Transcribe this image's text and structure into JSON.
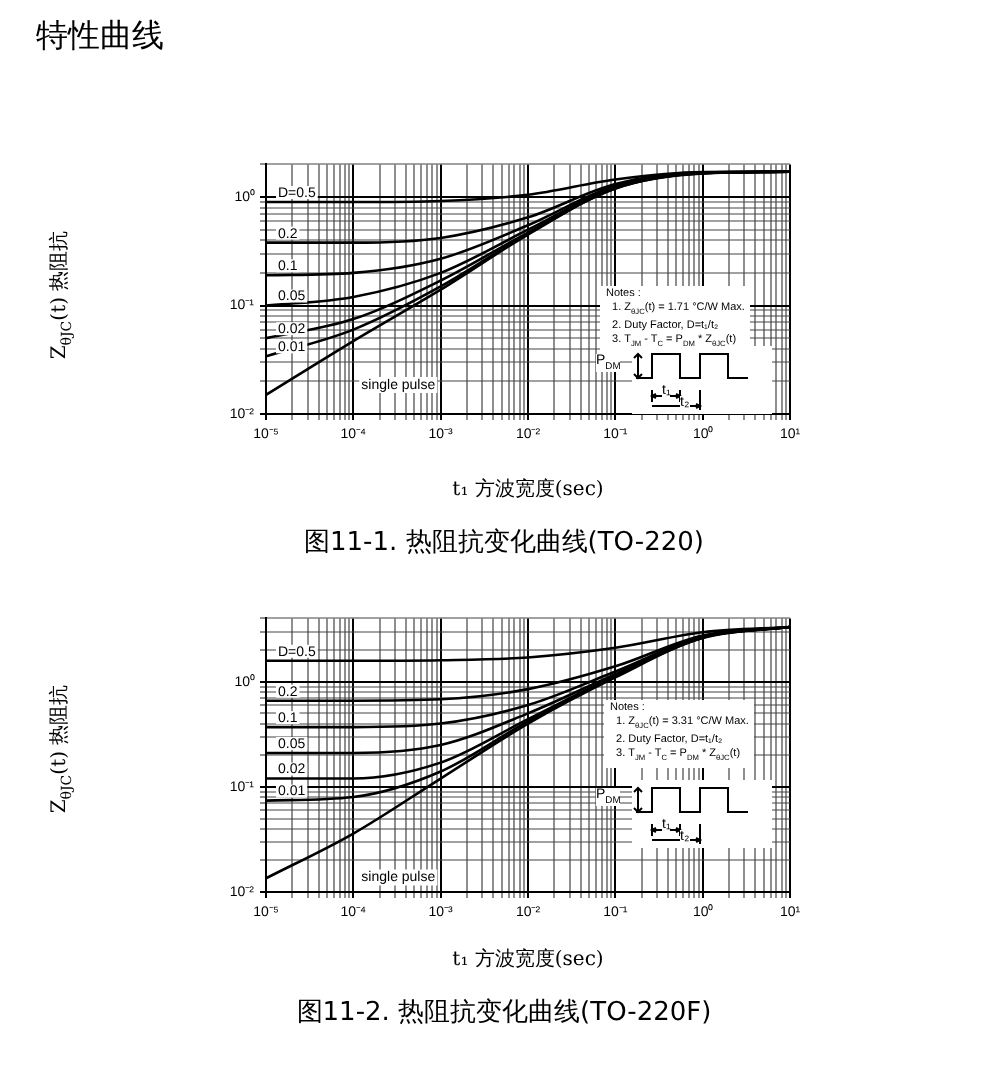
{
  "chart_data": [
    {
      "type": "other",
      "title": "特性曲线"
    },
    {
      "type": "line",
      "title": "图11-1. 热阻抗变化曲线(TO-220)",
      "xlabel": "t₁ 方波宽度(sec)",
      "ylabel": "Z$_{θJC}$(t) 热阻抗",
      "log": "xy",
      "grid": true,
      "legend": false,
      "marker": "none",
      "line_style": "solid",
      "annotations": [
        "Notes :",
        "1. Z$_{θJC}$(t) = 1.71 °C/W Max.",
        "2. Duty Factor, D=t₁/t₂",
        "3. T$_{JM}$ - T$_{C}$ = P$_{DM}$ * Z$_{θJC}$(t)",
        "P$_{DM}$",
        "t₁",
        "t₂"
      ],
      "xlim": [
        1e-05,
        10
      ],
      "ylim": [
        0.01,
        2
      ],
      "xticks": [
        {
          "value": 1e-05,
          "label": "10⁻⁵"
        },
        {
          "value": 2e-05,
          "label": null
        },
        {
          "value": 3e-05,
          "label": null
        },
        {
          "value": 4e-05,
          "label": null
        },
        {
          "value": 5e-05,
          "label": null
        },
        {
          "value": 6e-05,
          "label": null
        },
        {
          "value": 7e-05,
          "label": null
        },
        {
          "value": 8e-05,
          "label": null
        },
        {
          "value": 9e-05,
          "label": null
        },
        {
          "value": 0.0001,
          "label": "10⁻⁴"
        },
        {
          "value": 0.0002,
          "label": null
        },
        {
          "value": 0.0003,
          "label": null
        },
        {
          "value": 0.0004,
          "label": null
        },
        {
          "value": 0.0005,
          "label": null
        },
        {
          "value": 0.0006,
          "label": null
        },
        {
          "value": 0.0007,
          "label": null
        },
        {
          "value": 0.0008,
          "label": null
        },
        {
          "value": 0.0009,
          "label": null
        },
        {
          "value": 0.001,
          "label": "10⁻³"
        },
        {
          "value": 0.002,
          "label": null
        },
        {
          "value": 0.003,
          "label": null
        },
        {
          "value": 0.004,
          "label": null
        },
        {
          "value": 0.005,
          "label": null
        },
        {
          "value": 0.006,
          "label": null
        },
        {
          "value": 0.007,
          "label": null
        },
        {
          "value": 0.008,
          "label": null
        },
        {
          "value": 0.009,
          "label": null
        },
        {
          "value": 0.01,
          "label": "10⁻²"
        },
        {
          "value": 0.02,
          "label": null
        },
        {
          "value": 0.03,
          "label": null
        },
        {
          "value": 0.04,
          "label": null
        },
        {
          "value": 0.05,
          "label": null
        },
        {
          "value": 0.06,
          "label": null
        },
        {
          "value": 0.07,
          "label": null
        },
        {
          "value": 0.08,
          "label": null
        },
        {
          "value": 0.09,
          "label": null
        },
        {
          "value": 0.1,
          "label": "10⁻¹"
        },
        {
          "value": 0.2,
          "label": null
        },
        {
          "value": 0.3,
          "label": null
        },
        {
          "value": 0.4,
          "label": null
        },
        {
          "value": 0.5,
          "label": null
        },
        {
          "value": 0.6,
          "label": null
        },
        {
          "value": 0.7,
          "label": null
        },
        {
          "value": 0.8,
          "label": null
        },
        {
          "value": 0.9,
          "label": null
        },
        {
          "value": 1,
          "label": "10⁰"
        },
        {
          "value": 2,
          "label": null
        },
        {
          "value": 3,
          "label": null
        },
        {
          "value": 4,
          "label": null
        },
        {
          "value": 5,
          "label": null
        },
        {
          "value": 6,
          "label": null
        },
        {
          "value": 7,
          "label": null
        },
        {
          "value": 8,
          "label": null
        },
        {
          "value": 9,
          "label": null
        },
        {
          "value": 10,
          "label": "10¹"
        }
      ],
      "yticks": [
        {
          "value": 0.01,
          "label": "10⁻²"
        },
        {
          "value": 0.02,
          "label": null
        },
        {
          "value": 0.03,
          "label": null
        },
        {
          "value": 0.04,
          "label": null
        },
        {
          "value": 0.05,
          "label": null
        },
        {
          "value": 0.06,
          "label": null
        },
        {
          "value": 0.07,
          "label": null
        },
        {
          "value": 0.08,
          "label": null
        },
        {
          "value": 0.09,
          "label": null
        },
        {
          "value": 0.1,
          "label": "10⁻¹"
        },
        {
          "value": 0.2,
          "label": null
        },
        {
          "value": 0.3,
          "label": null
        },
        {
          "value": 0.4,
          "label": null
        },
        {
          "value": 0.5,
          "label": null
        },
        {
          "value": 0.6,
          "label": null
        },
        {
          "value": 0.7,
          "label": null
        },
        {
          "value": 0.8,
          "label": null
        },
        {
          "value": 0.9,
          "label": null
        },
        {
          "value": 1,
          "label": "10⁰"
        },
        {
          "value": 2,
          "label": null
        }
      ],
      "x": [
        1e-05,
        0.0001,
        0.001,
        0.01,
        0.1,
        1,
        10
      ],
      "series": [
        {
          "name": "D=0.5",
          "color": "#000000",
          "values": [
            0.9,
            0.9,
            0.92,
            1.05,
            1.45,
            1.7,
            1.71
          ]
        },
        {
          "name": "0.2",
          "color": "#000000",
          "values": [
            0.38,
            0.38,
            0.42,
            0.65,
            1.32,
            1.69,
            1.71
          ]
        },
        {
          "name": "0.1",
          "color": "#000000",
          "values": [
            0.19,
            0.2,
            0.27,
            0.55,
            1.27,
            1.68,
            1.71
          ]
        },
        {
          "name": "0.05",
          "color": "#000000",
          "values": [
            0.1,
            0.12,
            0.2,
            0.5,
            1.24,
            1.67,
            1.71
          ]
        },
        {
          "name": "0.02",
          "color": "#000000",
          "values": [
            0.05,
            0.075,
            0.17,
            0.47,
            1.22,
            1.66,
            1.71
          ]
        },
        {
          "name": "0.01",
          "color": "#000000",
          "values": [
            0.034,
            0.06,
            0.15,
            0.46,
            1.2,
            1.66,
            1.71
          ]
        },
        {
          "name": "single pulse",
          "color": "#000000",
          "values": [
            0.015,
            0.047,
            0.14,
            0.45,
            1.2,
            1.65,
            1.71
          ]
        }
      ]
    },
    {
      "type": "line",
      "title": "图11-2. 热阻抗变化曲线(TO-220F)",
      "xlabel": "t₁ 方波宽度(sec)",
      "ylabel": "Z$_{θJC}$(t) 热阻抗",
      "log": "xy",
      "grid": true,
      "legend": false,
      "marker": "none",
      "line_style": "solid",
      "annotations": [
        "Notes :",
        "1. Z$_{θJC}$(t) = 3.31 °C/W Max.",
        "2. Duty Factor, D=t₁/t₂",
        "3. T$_{JM}$ - T$_{C}$ = P$_{DM}$ * Z$_{θJC}$(t)",
        "P$_{DM}$",
        "t₁",
        "t₂"
      ],
      "xlim": [
        1e-05,
        10
      ],
      "ylim": [
        0.01,
        4
      ],
      "xticks": [
        {
          "value": 1e-05,
          "label": "10⁻⁵"
        },
        {
          "value": 2e-05,
          "label": null
        },
        {
          "value": 3e-05,
          "label": null
        },
        {
          "value": 4e-05,
          "label": null
        },
        {
          "value": 5e-05,
          "label": null
        },
        {
          "value": 6e-05,
          "label": null
        },
        {
          "value": 7e-05,
          "label": null
        },
        {
          "value": 8e-05,
          "label": null
        },
        {
          "value": 9e-05,
          "label": null
        },
        {
          "value": 0.0001,
          "label": "10⁻⁴"
        },
        {
          "value": 0.0002,
          "label": null
        },
        {
          "value": 0.0003,
          "label": null
        },
        {
          "value": 0.0004,
          "label": null
        },
        {
          "value": 0.0005,
          "label": null
        },
        {
          "value": 0.0006,
          "label": null
        },
        {
          "value": 0.0007,
          "label": null
        },
        {
          "value": 0.0008,
          "label": null
        },
        {
          "value": 0.0009,
          "label": null
        },
        {
          "value": 0.001,
          "label": "10⁻³"
        },
        {
          "value": 0.002,
          "label": null
        },
        {
          "value": 0.003,
          "label": null
        },
        {
          "value": 0.004,
          "label": null
        },
        {
          "value": 0.005,
          "label": null
        },
        {
          "value": 0.006,
          "label": null
        },
        {
          "value": 0.007,
          "label": null
        },
        {
          "value": 0.008,
          "label": null
        },
        {
          "value": 0.009,
          "label": null
        },
        {
          "value": 0.01,
          "label": "10⁻²"
        },
        {
          "value": 0.02,
          "label": null
        },
        {
          "value": 0.03,
          "label": null
        },
        {
          "value": 0.04,
          "label": null
        },
        {
          "value": 0.05,
          "label": null
        },
        {
          "value": 0.06,
          "label": null
        },
        {
          "value": 0.07,
          "label": null
        },
        {
          "value": 0.08,
          "label": null
        },
        {
          "value": 0.09,
          "label": null
        },
        {
          "value": 0.1,
          "label": "10⁻¹"
        },
        {
          "value": 0.2,
          "label": null
        },
        {
          "value": 0.3,
          "label": null
        },
        {
          "value": 0.4,
          "label": null
        },
        {
          "value": 0.5,
          "label": null
        },
        {
          "value": 0.6,
          "label": null
        },
        {
          "value": 0.7,
          "label": null
        },
        {
          "value": 0.8,
          "label": null
        },
        {
          "value": 0.9,
          "label": null
        },
        {
          "value": 1,
          "label": "10⁰"
        },
        {
          "value": 2,
          "label": null
        },
        {
          "value": 3,
          "label": null
        },
        {
          "value": 4,
          "label": null
        },
        {
          "value": 5,
          "label": null
        },
        {
          "value": 6,
          "label": null
        },
        {
          "value": 7,
          "label": null
        },
        {
          "value": 8,
          "label": null
        },
        {
          "value": 9,
          "label": null
        },
        {
          "value": 10,
          "label": "10¹"
        }
      ],
      "yticks": [
        {
          "value": 0.01,
          "label": "10⁻²"
        },
        {
          "value": 0.02,
          "label": null
        },
        {
          "value": 0.03,
          "label": null
        },
        {
          "value": 0.04,
          "label": null
        },
        {
          "value": 0.05,
          "label": null
        },
        {
          "value": 0.06,
          "label": null
        },
        {
          "value": 0.07,
          "label": null
        },
        {
          "value": 0.08,
          "label": null
        },
        {
          "value": 0.09,
          "label": null
        },
        {
          "value": 0.1,
          "label": "10⁻¹"
        },
        {
          "value": 0.2,
          "label": null
        },
        {
          "value": 0.3,
          "label": null
        },
        {
          "value": 0.4,
          "label": null
        },
        {
          "value": 0.5,
          "label": null
        },
        {
          "value": 0.6,
          "label": null
        },
        {
          "value": 0.7,
          "label": null
        },
        {
          "value": 0.8,
          "label": null
        },
        {
          "value": 0.9,
          "label": null
        },
        {
          "value": 1,
          "label": "10⁰"
        },
        {
          "value": 2,
          "label": null
        },
        {
          "value": 3,
          "label": null
        },
        {
          "value": 4,
          "label": null
        }
      ],
      "x": [
        1e-05,
        0.0001,
        0.001,
        0.01,
        0.1,
        1,
        10
      ],
      "series": [
        {
          "name": "D=0.5",
          "color": "#000000",
          "values": [
            1.58,
            1.58,
            1.6,
            1.7,
            2.1,
            2.95,
            3.31
          ]
        },
        {
          "name": "0.2",
          "color": "#000000",
          "values": [
            0.66,
            0.66,
            0.68,
            0.85,
            1.4,
            2.75,
            3.31
          ]
        },
        {
          "name": "0.1",
          "color": "#000000",
          "values": [
            0.37,
            0.37,
            0.4,
            0.6,
            1.25,
            2.7,
            3.31
          ]
        },
        {
          "name": "0.05",
          "color": "#000000",
          "values": [
            0.21,
            0.21,
            0.25,
            0.5,
            1.18,
            2.66,
            3.31
          ]
        },
        {
          "name": "0.02",
          "color": "#000000",
          "values": [
            0.12,
            0.12,
            0.17,
            0.44,
            1.14,
            2.64,
            3.31
          ]
        },
        {
          "name": "0.01",
          "color": "#000000",
          "values": [
            0.074,
            0.08,
            0.14,
            0.42,
            1.12,
            2.62,
            3.31
          ]
        },
        {
          "name": "single pulse",
          "color": "#000000",
          "values": [
            0.0135,
            0.036,
            0.12,
            0.4,
            1.1,
            2.6,
            3.31
          ]
        }
      ]
    }
  ]
}
